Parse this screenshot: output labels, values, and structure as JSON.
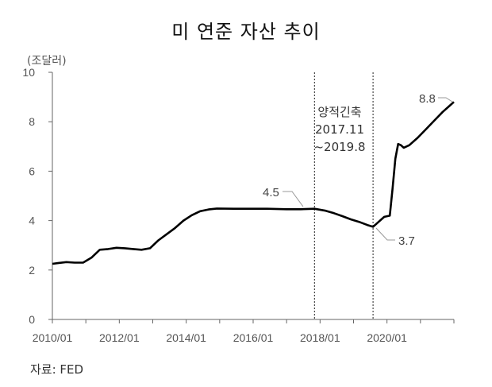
{
  "chart_data": {
    "type": "line",
    "title": "미 연준 자산 추이",
    "unit": "(조달러)",
    "source": "자료: FED",
    "ylim": [
      0,
      10
    ],
    "yticks": [
      0,
      2,
      4,
      6,
      8,
      10
    ],
    "xlim": [
      "2010-01",
      "2022-01"
    ],
    "xticks": [
      "2010/01",
      "2012/01",
      "2014/01",
      "2016/01",
      "2018/01",
      "2020/01"
    ],
    "grid": false,
    "series": [
      {
        "color": "#000000",
        "points": [
          [
            "2010-01",
            2.25
          ],
          [
            "2010-03",
            2.28
          ],
          [
            "2010-06",
            2.32
          ],
          [
            "2010-09",
            2.3
          ],
          [
            "2010-12",
            2.3
          ],
          [
            "2011-03",
            2.5
          ],
          [
            "2011-06",
            2.82
          ],
          [
            "2011-09",
            2.85
          ],
          [
            "2011-12",
            2.9
          ],
          [
            "2012-03",
            2.88
          ],
          [
            "2012-06",
            2.85
          ],
          [
            "2012-09",
            2.82
          ],
          [
            "2012-12",
            2.88
          ],
          [
            "2013-03",
            3.2
          ],
          [
            "2013-06",
            3.45
          ],
          [
            "2013-09",
            3.7
          ],
          [
            "2013-12",
            4.0
          ],
          [
            "2014-03",
            4.22
          ],
          [
            "2014-06",
            4.38
          ],
          [
            "2014-09",
            4.45
          ],
          [
            "2014-12",
            4.49
          ],
          [
            "2015-06",
            4.48
          ],
          [
            "2016-01",
            4.48
          ],
          [
            "2016-06",
            4.48
          ],
          [
            "2017-01",
            4.46
          ],
          [
            "2017-06",
            4.46
          ],
          [
            "2017-11",
            4.48
          ],
          [
            "2018-03",
            4.4
          ],
          [
            "2018-06",
            4.3
          ],
          [
            "2018-09",
            4.18
          ],
          [
            "2018-12",
            4.05
          ],
          [
            "2019-03",
            3.95
          ],
          [
            "2019-06",
            3.82
          ],
          [
            "2019-08",
            3.75
          ],
          [
            "2019-09",
            3.85
          ],
          [
            "2019-10",
            3.95
          ],
          [
            "2019-12",
            4.15
          ],
          [
            "2020-02",
            4.2
          ],
          [
            "2020-03",
            5.3
          ],
          [
            "2020-04",
            6.5
          ],
          [
            "2020-05",
            7.1
          ],
          [
            "2020-06",
            7.05
          ],
          [
            "2020-07",
            6.95
          ],
          [
            "2020-09",
            7.05
          ],
          [
            "2020-12",
            7.35
          ],
          [
            "2021-03",
            7.7
          ],
          [
            "2021-06",
            8.05
          ],
          [
            "2021-09",
            8.4
          ],
          [
            "2021-12",
            8.7
          ],
          [
            "2022-01",
            8.8
          ]
        ]
      }
    ],
    "vlines": [
      "2017-11",
      "2019-08"
    ],
    "annotations": {
      "period_line1": "양적긴축",
      "period_line2": "2017.11",
      "period_line3": "~2019.8",
      "label_45": "4.5",
      "label_37": "3.7",
      "label_88": "8.8"
    }
  }
}
